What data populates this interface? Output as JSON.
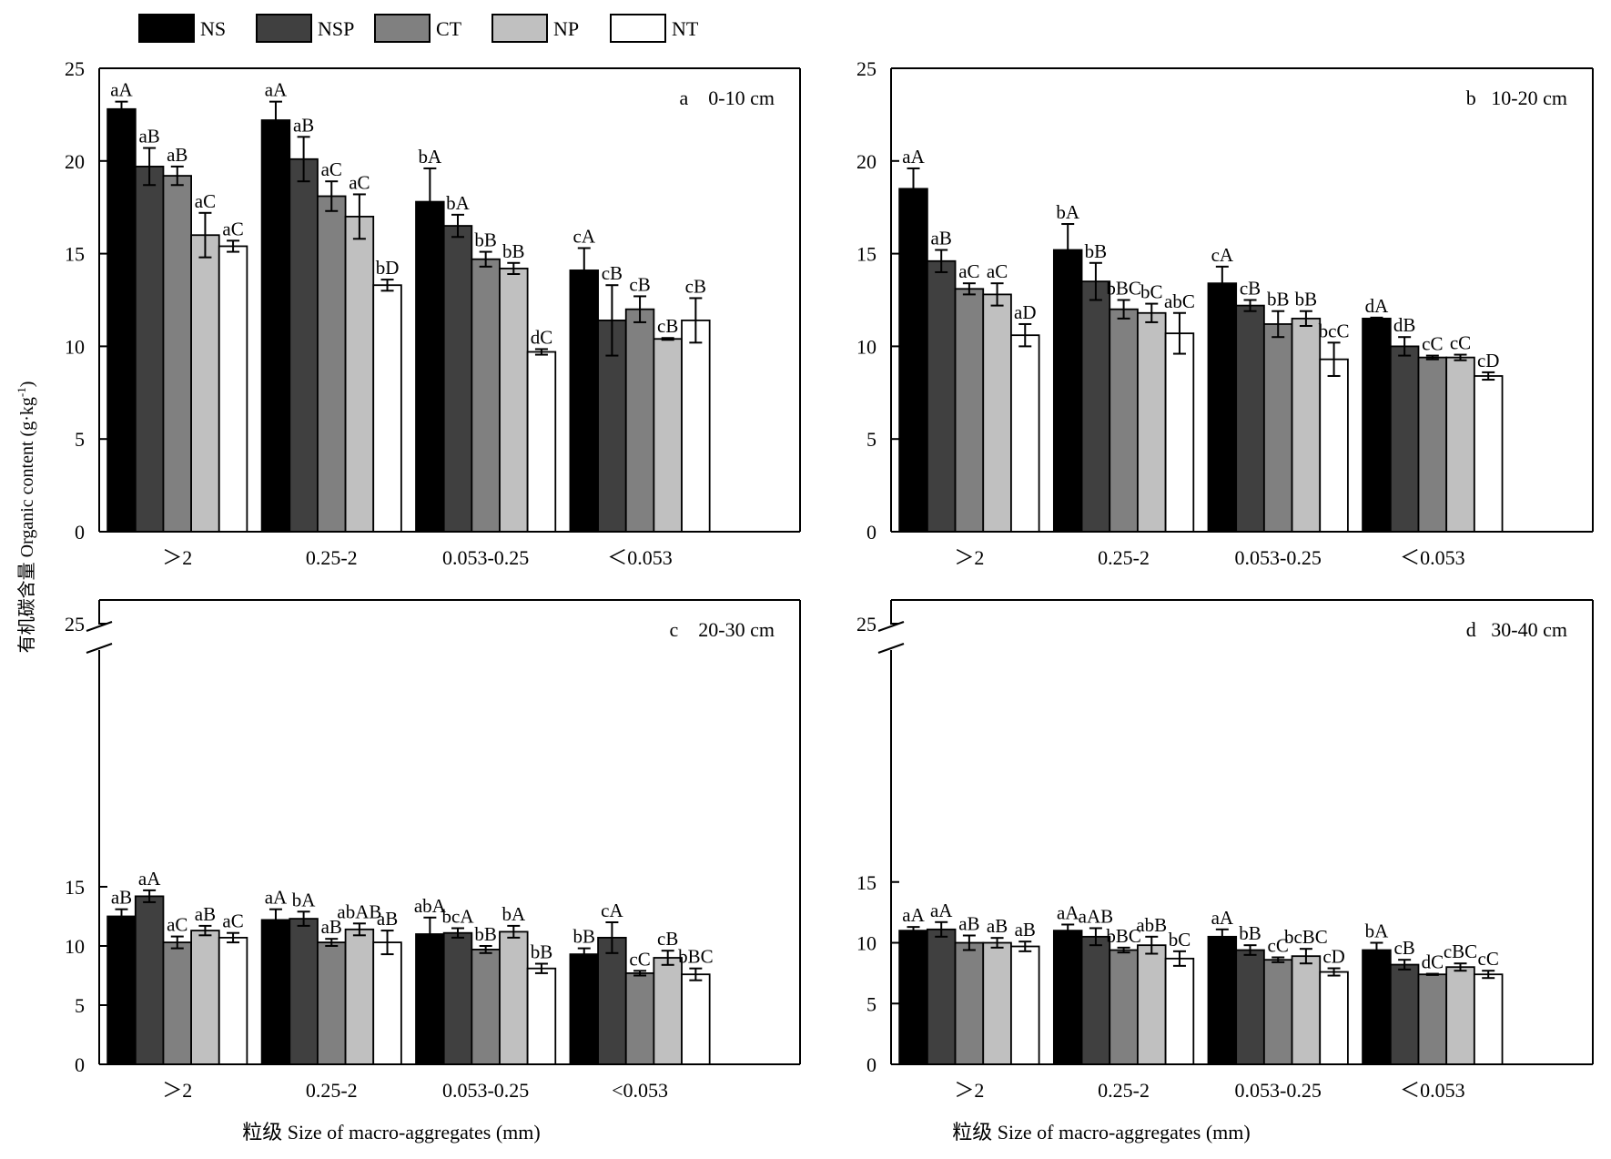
{
  "figure": {
    "ylabel": "有机碳含量 Organic content (g·kg",
    "ylabel_sup": "-1",
    "ylabel_close": ")",
    "xlabel": "粒级 Size of  macro-aggregates (mm)"
  },
  "legend": [
    {
      "name": "NS",
      "color": "#000000"
    },
    {
      "name": "NSP",
      "color": "#404040"
    },
    {
      "name": "CT",
      "color": "#808080"
    },
    {
      "name": "NP",
      "color": "#c0c0c0"
    },
    {
      "name": "NT",
      "color": "#ffffff"
    }
  ],
  "chart_data": [
    {
      "type": "bar",
      "panel": "a",
      "title": "a    0-10 cm",
      "categories": [
        ">2",
        "0.25-2",
        "0.053-0.25",
        "<0.053"
      ],
      "category_labels": [
        "＞2",
        "0.25-2",
        "0.053-0.25",
        "＜0.053"
      ],
      "ylim": [
        0,
        25
      ],
      "yticks": [
        0,
        5,
        10,
        15,
        20,
        25
      ],
      "series": [
        {
          "name": "NS",
          "values": [
            22.8,
            22.2,
            17.8,
            14.1
          ],
          "errors": [
            0.4,
            1.0,
            1.8,
            1.2
          ],
          "labels": [
            "aA",
            "aA",
            "bA",
            "cA"
          ]
        },
        {
          "name": "NSP",
          "values": [
            19.7,
            20.1,
            16.5,
            11.4
          ],
          "errors": [
            1.0,
            1.2,
            0.6,
            1.9
          ],
          "labels": [
            "aB",
            "aB",
            "bA",
            "cB"
          ]
        },
        {
          "name": "CT",
          "values": [
            19.2,
            18.1,
            14.7,
            12.0
          ],
          "errors": [
            0.5,
            0.8,
            0.4,
            0.7
          ],
          "labels": [
            "aB",
            "aC",
            "bB",
            "cB"
          ]
        },
        {
          "name": "NP",
          "values": [
            16.0,
            17.0,
            14.2,
            10.4
          ],
          "errors": [
            1.2,
            1.2,
            0.3,
            0.05
          ],
          "labels": [
            "aC",
            "aC",
            "bB",
            "cB"
          ]
        },
        {
          "name": "NT",
          "values": [
            15.4,
            13.3,
            9.7,
            11.4
          ],
          "errors": [
            0.3,
            0.3,
            0.15,
            1.2
          ],
          "labels": [
            "aC",
            "bD",
            "dC",
            "cB"
          ]
        }
      ]
    },
    {
      "type": "bar",
      "panel": "b",
      "title": "b   10-20 cm",
      "categories": [
        ">2",
        "0.25-2",
        "0.053-0.25",
        "<0.053"
      ],
      "category_labels": [
        "＞2",
        "0.25-2",
        "0.053-0.25",
        "＜0.053"
      ],
      "ylim": [
        0,
        25
      ],
      "yticks": [
        0,
        5,
        10,
        15,
        20,
        25
      ],
      "series": [
        {
          "name": "NS",
          "values": [
            18.5,
            15.2,
            13.4,
            11.5
          ],
          "errors": [
            1.1,
            1.4,
            0.9,
            0.05
          ],
          "labels": [
            "aA",
            "bA",
            "cA",
            "dA"
          ]
        },
        {
          "name": "NSP",
          "values": [
            14.6,
            13.5,
            12.2,
            10.0
          ],
          "errors": [
            0.6,
            1.0,
            0.3,
            0.5
          ],
          "labels": [
            "aB",
            "bB",
            "cB",
            "dB"
          ]
        },
        {
          "name": "CT",
          "values": [
            13.1,
            12.0,
            11.2,
            9.4
          ],
          "errors": [
            0.3,
            0.5,
            0.7,
            0.1
          ],
          "labels": [
            "aC",
            "bBC",
            "bB",
            "cC"
          ]
        },
        {
          "name": "NP",
          "values": [
            12.8,
            11.8,
            11.5,
            9.4
          ],
          "errors": [
            0.6,
            0.5,
            0.4,
            0.15
          ],
          "labels": [
            "aC",
            "bC",
            "bB",
            "cC"
          ]
        },
        {
          "name": "NT",
          "values": [
            10.6,
            10.7,
            9.3,
            8.4
          ],
          "errors": [
            0.6,
            1.1,
            0.9,
            0.2
          ],
          "labels": [
            "aD",
            "abC",
            "bcC",
            "cD"
          ]
        }
      ]
    },
    {
      "type": "bar",
      "panel": "c",
      "title": "c    20-30 cm",
      "categories": [
        ">2",
        "0.25-2",
        "0.053-0.25",
        "<0.053"
      ],
      "category_labels": [
        "＞2",
        "0.25-2",
        "0.053-0.25",
        "<0.053"
      ],
      "ylim": [
        0,
        25
      ],
      "axis_break": [
        16.5,
        24
      ],
      "yticks": [
        0,
        5,
        10,
        15,
        25
      ],
      "series": [
        {
          "name": "NS",
          "values": [
            12.5,
            12.2,
            11.0,
            9.3
          ],
          "errors": [
            0.6,
            0.9,
            1.4,
            0.5
          ],
          "labels": [
            "aB",
            "aA",
            "abA",
            "bB"
          ]
        },
        {
          "name": "NSP",
          "values": [
            14.2,
            12.3,
            11.1,
            10.7
          ],
          "errors": [
            0.5,
            0.6,
            0.4,
            1.3
          ],
          "labels": [
            "aA",
            "bA",
            "bcA",
            "cA"
          ]
        },
        {
          "name": "CT",
          "values": [
            10.3,
            10.3,
            9.7,
            7.7
          ],
          "errors": [
            0.5,
            0.3,
            0.3,
            0.2
          ],
          "labels": [
            "aC",
            "aB",
            "bB",
            "cC"
          ]
        },
        {
          "name": "NP",
          "values": [
            11.3,
            11.4,
            11.2,
            9.0
          ],
          "errors": [
            0.4,
            0.5,
            0.5,
            0.6
          ],
          "labels": [
            "aB",
            "abAB",
            "bA",
            "cB"
          ]
        },
        {
          "name": "NT",
          "values": [
            10.7,
            10.3,
            8.1,
            7.6
          ],
          "errors": [
            0.4,
            1.0,
            0.4,
            0.5
          ],
          "labels": [
            "aC",
            "aB",
            "bB",
            "bBC"
          ]
        }
      ]
    },
    {
      "type": "bar",
      "panel": "d",
      "title": "d   30-40 cm",
      "categories": [
        ">2",
        "0.25-2",
        "0.053-0.25",
        "<0.053"
      ],
      "category_labels": [
        "＞2",
        "0.25-2",
        "0.053-0.25",
        "＜0.053"
      ],
      "ylim": [
        0,
        25
      ],
      "axis_break": [
        16.5,
        24
      ],
      "yticks": [
        0,
        5,
        10,
        15,
        25
      ],
      "series": [
        {
          "name": "NS",
          "values": [
            11.0,
            11.0,
            10.5,
            9.4
          ],
          "errors": [
            0.3,
            0.5,
            0.6,
            0.6
          ],
          "labels": [
            "aA",
            "aA",
            "aA",
            "bA"
          ]
        },
        {
          "name": "NSP",
          "values": [
            11.1,
            10.5,
            9.4,
            8.2
          ],
          "errors": [
            0.6,
            0.7,
            0.4,
            0.4
          ],
          "labels": [
            "aA",
            "aAB",
            "bB",
            "cB"
          ]
        },
        {
          "name": "CT",
          "values": [
            10.0,
            9.4,
            8.6,
            7.4
          ],
          "errors": [
            0.6,
            0.2,
            0.2,
            0.05
          ],
          "labels": [
            "aB",
            "bBC",
            "cC",
            "dC"
          ]
        },
        {
          "name": "NP",
          "values": [
            10.0,
            9.8,
            8.9,
            8.0
          ],
          "errors": [
            0.4,
            0.7,
            0.6,
            0.3
          ],
          "labels": [
            "aB",
            "abB",
            "bcBC",
            "cBC"
          ]
        },
        {
          "name": "NT",
          "values": [
            9.7,
            8.7,
            7.6,
            7.4
          ],
          "errors": [
            0.4,
            0.6,
            0.3,
            0.3
          ],
          "labels": [
            "aB",
            "bC",
            "cD",
            "cC"
          ]
        }
      ]
    }
  ]
}
